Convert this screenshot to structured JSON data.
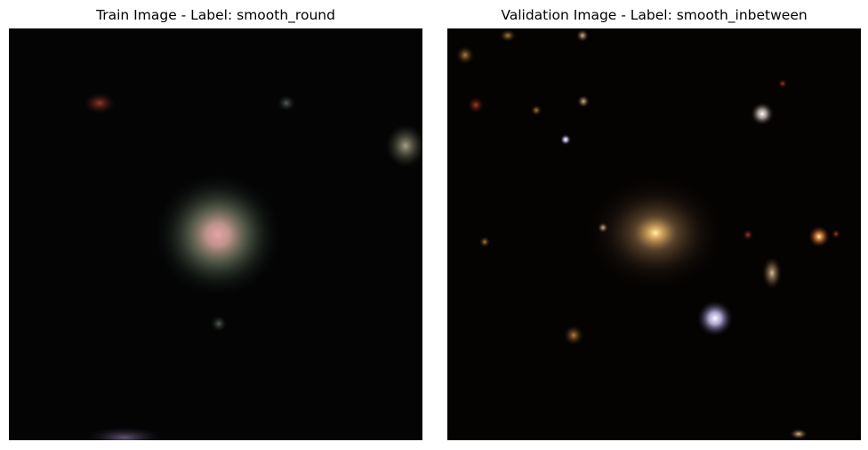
{
  "panels": [
    {
      "title": "Train Image - Label: smooth_round",
      "image_subject": "galaxy-smooth-round",
      "background_color": "#040405"
    },
    {
      "title": "Validation Image - Label: smooth_inbetween",
      "image_subject": "galaxy-smooth-inbetween",
      "background_color": "#050302"
    }
  ]
}
